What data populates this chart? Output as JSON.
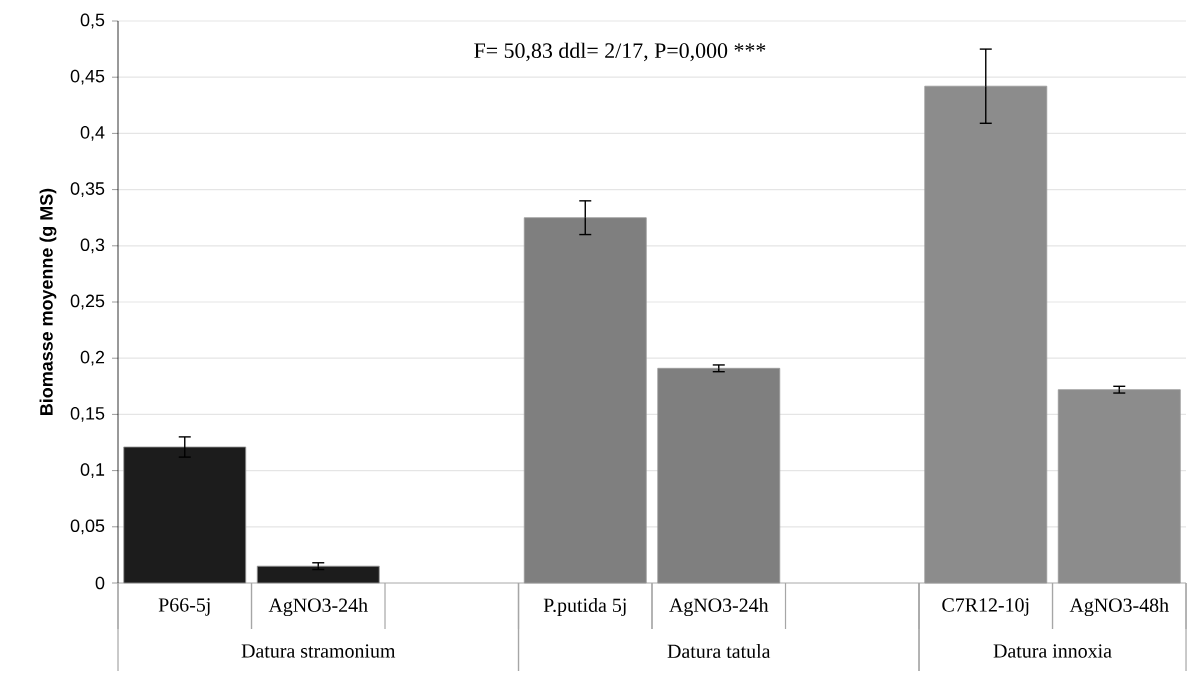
{
  "chart_data": {
    "type": "bar",
    "ylabel": "Biomasse moyenne (g MS)",
    "categories": [
      "P66-5j",
      "AgNO3-24h",
      null,
      "P.putida 5j",
      "AgNO3-24h",
      null,
      "C7R12-10j",
      "AgNO3-48h"
    ],
    "values": [
      0.121,
      0.015,
      null,
      0.325,
      0.191,
      null,
      0.442,
      0.172
    ],
    "errors": [
      0.009,
      0.003,
      null,
      0.015,
      0.003,
      null,
      0.033,
      0.003
    ],
    "colors": [
      "#1c1c1c",
      "#1c1c1c",
      null,
      "#7f7f7f",
      "#7f7f7f",
      null,
      "#8c8c8c",
      "#8c8c8c"
    ],
    "ylim": [
      0,
      0.5
    ],
    "yticks": [
      0,
      {
        "value": 0.05,
        "label": "0,05"
      },
      {
        "value": 0.1,
        "label": "0,1"
      },
      {
        "value": 0.15,
        "label": "0,15"
      },
      {
        "value": 0.2,
        "label": "0,2"
      },
      {
        "value": 0.25,
        "label": "0,25"
      },
      {
        "value": 0.3,
        "label": "0,3"
      },
      {
        "value": 0.35,
        "label": "0,35"
      },
      {
        "value": 0.4,
        "label": "0,4"
      },
      {
        "value": 0.45,
        "label": "0,45"
      },
      {
        "value": 0.5,
        "label": "0,5"
      }
    ],
    "grid": "y",
    "annotations": [
      "F= 50,83 ddl= 2/17, P=0,000 ***",
      "Datura stramonium",
      "Datura tatula",
      "Datura innoxia"
    ]
  }
}
